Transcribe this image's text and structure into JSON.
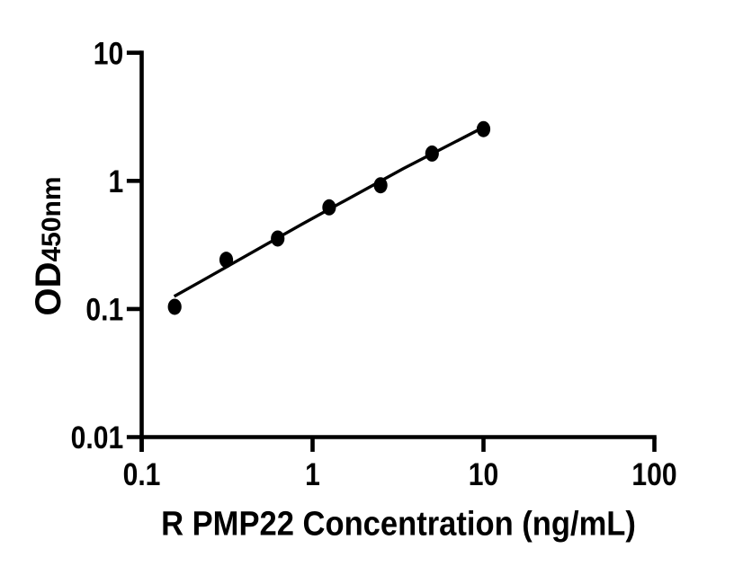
{
  "figure": {
    "description": "ELISA standard curve scatter plot with fitted line on log-log axes",
    "background_color": "#ffffff",
    "ink_color": "#000000"
  },
  "chart_data": {
    "type": "scatter",
    "title": "",
    "xlabel": "R PMP22 Concentration (ng/mL)",
    "ylabel_main": "OD",
    "ylabel_sub": "450nm",
    "xscale": "log",
    "yscale": "log",
    "xlim": [
      0.1,
      100
    ],
    "ylim": [
      0.01,
      10
    ],
    "x_ticks": [
      0.1,
      1,
      10,
      100
    ],
    "x_tick_labels": [
      "0.1",
      "1",
      "10",
      "100"
    ],
    "y_ticks": [
      0.01,
      0.1,
      1,
      10
    ],
    "y_tick_labels": [
      "0.01",
      "0.1",
      "1",
      "10"
    ],
    "grid": false,
    "legend": false,
    "series": [
      {
        "name": "fit-line",
        "type": "line",
        "color": "#000000",
        "points": [
          {
            "x": 0.155,
            "y": 0.1255
          },
          {
            "x": 0.224,
            "y": 0.1652
          },
          {
            "x": 0.87,
            "y": 0.4602
          },
          {
            "x": 3.38,
            "y": 1.2413
          },
          {
            "x": 9.94,
            "y": 2.608
          }
        ]
      },
      {
        "name": "standards",
        "type": "scatter",
        "marker": "circle",
        "color": "#000000",
        "points": [
          {
            "x": 0.156,
            "y": 0.104
          },
          {
            "x": 0.3125,
            "y": 0.242
          },
          {
            "x": 0.625,
            "y": 0.355
          },
          {
            "x": 1.25,
            "y": 0.621
          },
          {
            "x": 2.5,
            "y": 0.924
          },
          {
            "x": 5,
            "y": 1.633
          },
          {
            "x": 10,
            "y": 2.533
          }
        ]
      }
    ]
  }
}
